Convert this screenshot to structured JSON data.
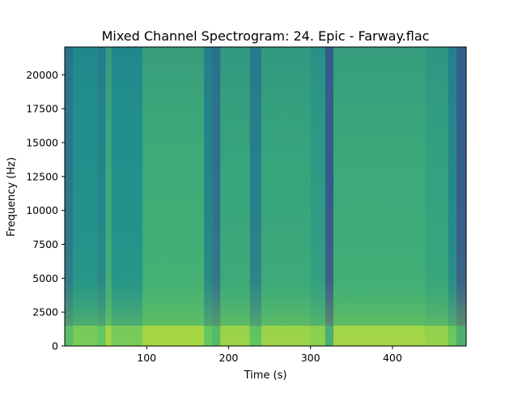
{
  "chart_data": {
    "type": "heatmap",
    "title": "Mixed Channel Spectrogram: 24. Epic - Farway.flac",
    "xlabel": "Time (s)",
    "ylabel": "Frequency (Hz)",
    "xlim": [
      0,
      490
    ],
    "ylim": [
      0,
      22050
    ],
    "x_ticks": [
      100,
      200,
      300,
      400
    ],
    "y_ticks": [
      0,
      2500,
      5000,
      7500,
      10000,
      12500,
      15000,
      17500,
      20000
    ],
    "grid": false,
    "colormap": "viridis",
    "time_segments": [
      {
        "start": 0,
        "end": 10,
        "level": 0.38
      },
      {
        "start": 10,
        "end": 40,
        "level": 0.5
      },
      {
        "start": 40,
        "end": 50,
        "level": 0.44
      },
      {
        "start": 50,
        "end": 57,
        "level": 0.62
      },
      {
        "start": 57,
        "end": 95,
        "level": 0.5
      },
      {
        "start": 95,
        "end": 170,
        "level": 0.63
      },
      {
        "start": 170,
        "end": 180,
        "level": 0.44
      },
      {
        "start": 180,
        "end": 190,
        "level": 0.36
      },
      {
        "start": 190,
        "end": 226,
        "level": 0.6
      },
      {
        "start": 226,
        "end": 240,
        "level": 0.42
      },
      {
        "start": 240,
        "end": 300,
        "level": 0.6
      },
      {
        "start": 300,
        "end": 318,
        "level": 0.55
      },
      {
        "start": 318,
        "end": 328,
        "level": 0.26
      },
      {
        "start": 328,
        "end": 440,
        "level": 0.62
      },
      {
        "start": 440,
        "end": 468,
        "level": 0.58
      },
      {
        "start": 468,
        "end": 478,
        "level": 0.46
      },
      {
        "start": 478,
        "end": 490,
        "level": 0.28
      }
    ],
    "low_freq_level": 0.88
  }
}
